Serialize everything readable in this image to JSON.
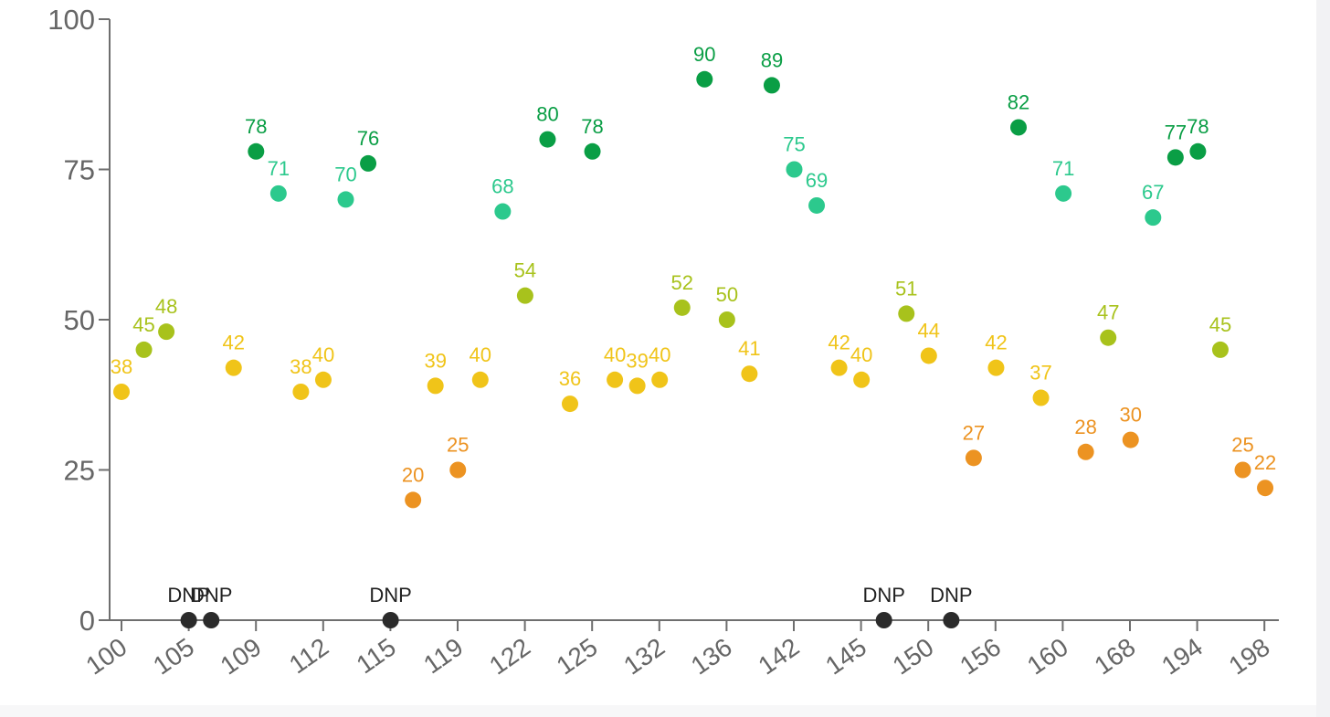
{
  "chart_data": {
    "type": "scatter",
    "title": "",
    "xlabel": "",
    "ylabel": "",
    "ylim": [
      0,
      100
    ],
    "yticks": [
      0,
      25,
      50,
      75,
      100
    ],
    "grid": false,
    "legend": "none",
    "x_tick_labels": [
      "100",
      "105",
      "109",
      "112",
      "115",
      "119",
      "122",
      "125",
      "132",
      "136",
      "142",
      "145",
      "150",
      "156",
      "160",
      "168",
      "194",
      "198"
    ],
    "dnp_label": "DNP",
    "color_scale": {
      "dnp": "#2b2b2b",
      "low": "#ec9322",
      "mid": "#f0c419",
      "upper_mid": "#a8c21c",
      "high": "#2cc98d",
      "top": "#0a9e45"
    },
    "points": [
      {
        "value": 38,
        "label": "38"
      },
      {
        "value": 45,
        "label": "45"
      },
      {
        "value": 48,
        "label": "48"
      },
      {
        "value": null,
        "label": "DNP"
      },
      {
        "value": null,
        "label": "DNP"
      },
      {
        "value": 42,
        "label": "42"
      },
      {
        "value": 78,
        "label": "78"
      },
      {
        "value": 71,
        "label": "71"
      },
      {
        "value": 38,
        "label": "38"
      },
      {
        "value": 40,
        "label": "40"
      },
      {
        "value": 70,
        "label": "70"
      },
      {
        "value": 76,
        "label": "76"
      },
      {
        "value": null,
        "label": "DNP"
      },
      {
        "value": 20,
        "label": "20"
      },
      {
        "value": 39,
        "label": "39"
      },
      {
        "value": 25,
        "label": "25"
      },
      {
        "value": 40,
        "label": "40"
      },
      {
        "value": 68,
        "label": "68"
      },
      {
        "value": 54,
        "label": "54"
      },
      {
        "value": 80,
        "label": "80"
      },
      {
        "value": 36,
        "label": "36"
      },
      {
        "value": 78,
        "label": "78"
      },
      {
        "value": 40,
        "label": "40"
      },
      {
        "value": 39,
        "label": "39"
      },
      {
        "value": 40,
        "label": "40"
      },
      {
        "value": 52,
        "label": "52"
      },
      {
        "value": 90,
        "label": "90"
      },
      {
        "value": 50,
        "label": "50"
      },
      {
        "value": 41,
        "label": "41"
      },
      {
        "value": 89,
        "label": "89"
      },
      {
        "value": 75,
        "label": "75"
      },
      {
        "value": 69,
        "label": "69"
      },
      {
        "value": 42,
        "label": "42"
      },
      {
        "value": 40,
        "label": "40"
      },
      {
        "value": null,
        "label": "DNP"
      },
      {
        "value": 51,
        "label": "51"
      },
      {
        "value": 44,
        "label": "44"
      },
      {
        "value": null,
        "label": "DNP"
      },
      {
        "value": 27,
        "label": "27"
      },
      {
        "value": 42,
        "label": "42"
      },
      {
        "value": 82,
        "label": "82"
      },
      {
        "value": 37,
        "label": "37"
      },
      {
        "value": 71,
        "label": "71"
      },
      {
        "value": 28,
        "label": "28"
      },
      {
        "value": 47,
        "label": "47"
      },
      {
        "value": 30,
        "label": "30"
      },
      {
        "value": 67,
        "label": "67"
      },
      {
        "value": 77,
        "label": "77"
      },
      {
        "value": 78,
        "label": "78"
      },
      {
        "value": 45,
        "label": "45"
      },
      {
        "value": 25,
        "label": "25"
      },
      {
        "value": 22,
        "label": "22"
      }
    ]
  }
}
